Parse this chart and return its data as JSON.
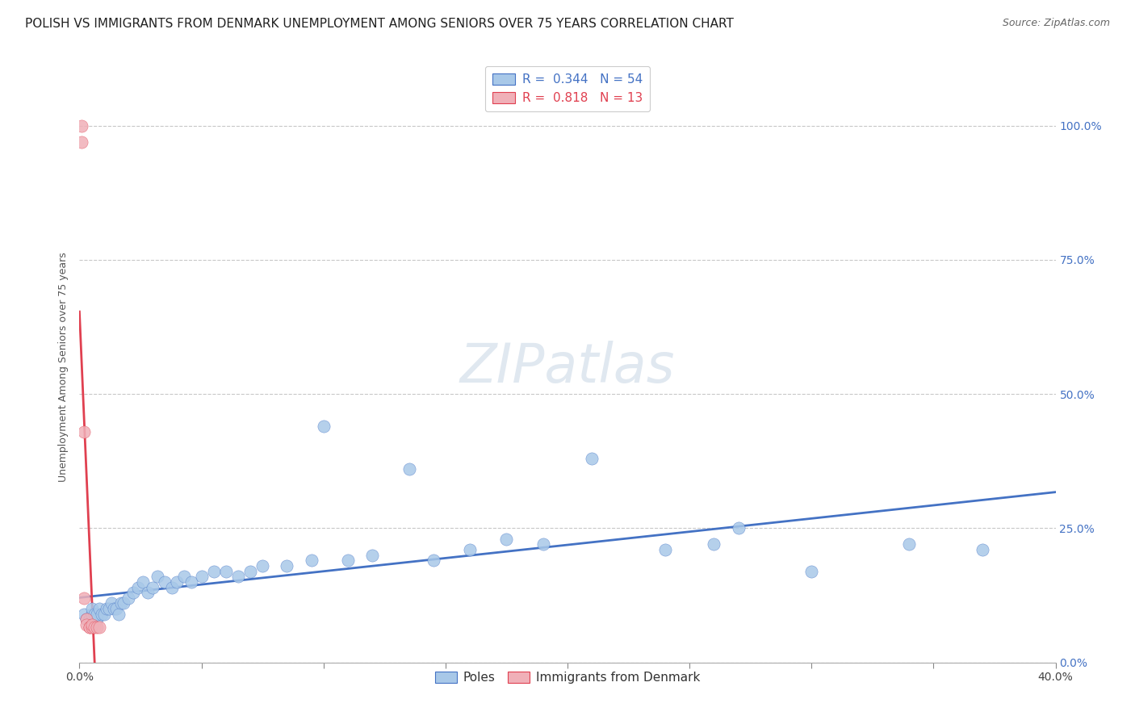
{
  "title": "POLISH VS IMMIGRANTS FROM DENMARK UNEMPLOYMENT AMONG SENIORS OVER 75 YEARS CORRELATION CHART",
  "source": "Source: ZipAtlas.com",
  "ylabel": "Unemployment Among Seniors over 75 years",
  "background_color": "#ffffff",
  "watermark_text": "ZIPatlas",
  "poles_R": 0.344,
  "poles_N": 54,
  "denmark_R": 0.818,
  "denmark_N": 13,
  "poles_color": "#a8c8e8",
  "denmark_color": "#f0b0b8",
  "poles_line_color": "#4472c4",
  "denmark_line_color": "#e04050",
  "poles_x": [
    0.002,
    0.003,
    0.004,
    0.005,
    0.005,
    0.006,
    0.007,
    0.007,
    0.008,
    0.009,
    0.01,
    0.011,
    0.012,
    0.013,
    0.014,
    0.015,
    0.016,
    0.017,
    0.018,
    0.02,
    0.022,
    0.024,
    0.026,
    0.028,
    0.03,
    0.032,
    0.035,
    0.038,
    0.04,
    0.043,
    0.046,
    0.05,
    0.055,
    0.06,
    0.065,
    0.07,
    0.075,
    0.085,
    0.095,
    0.1,
    0.11,
    0.12,
    0.135,
    0.145,
    0.16,
    0.175,
    0.19,
    0.21,
    0.24,
    0.26,
    0.27,
    0.3,
    0.34,
    0.37
  ],
  "poles_y": [
    0.09,
    0.08,
    0.08,
    0.09,
    0.1,
    0.09,
    0.08,
    0.09,
    0.1,
    0.09,
    0.09,
    0.1,
    0.1,
    0.11,
    0.1,
    0.1,
    0.09,
    0.11,
    0.11,
    0.12,
    0.13,
    0.14,
    0.15,
    0.13,
    0.14,
    0.16,
    0.15,
    0.14,
    0.15,
    0.16,
    0.15,
    0.16,
    0.17,
    0.17,
    0.16,
    0.17,
    0.18,
    0.18,
    0.19,
    0.44,
    0.19,
    0.2,
    0.36,
    0.19,
    0.21,
    0.23,
    0.22,
    0.38,
    0.21,
    0.22,
    0.25,
    0.17,
    0.22,
    0.21
  ],
  "denmark_x": [
    0.001,
    0.001,
    0.002,
    0.002,
    0.003,
    0.003,
    0.004,
    0.004,
    0.005,
    0.005,
    0.006,
    0.007,
    0.008
  ],
  "denmark_y": [
    1.0,
    0.97,
    0.43,
    0.12,
    0.08,
    0.07,
    0.065,
    0.065,
    0.065,
    0.07,
    0.065,
    0.065,
    0.065
  ],
  "xlim": [
    0.0,
    0.4
  ],
  "ylim": [
    0.0,
    1.1
  ],
  "xtick_pos": [
    0.0,
    0.05,
    0.1,
    0.15,
    0.2,
    0.25,
    0.3,
    0.35,
    0.4
  ],
  "xtick_labeled": [
    0.0,
    0.4
  ],
  "xtick_label_vals": [
    "0.0%",
    "40.0%"
  ],
  "yticks_right": [
    0.0,
    0.25,
    0.5,
    0.75,
    1.0
  ],
  "ytick_labels_right": [
    "0.0%",
    "25.0%",
    "50.0%",
    "75.0%",
    "100.0%"
  ],
  "legend_poles_label": "Poles",
  "legend_denmark_label": "Immigrants from Denmark",
  "title_fontsize": 11,
  "source_fontsize": 9,
  "axis_label_fontsize": 9,
  "tick_fontsize": 10,
  "legend_fontsize": 11,
  "watermark_fontsize": 48,
  "watermark_color": "#e0e8f0",
  "grid_color": "#c8c8c8",
  "grid_linestyle": "--"
}
